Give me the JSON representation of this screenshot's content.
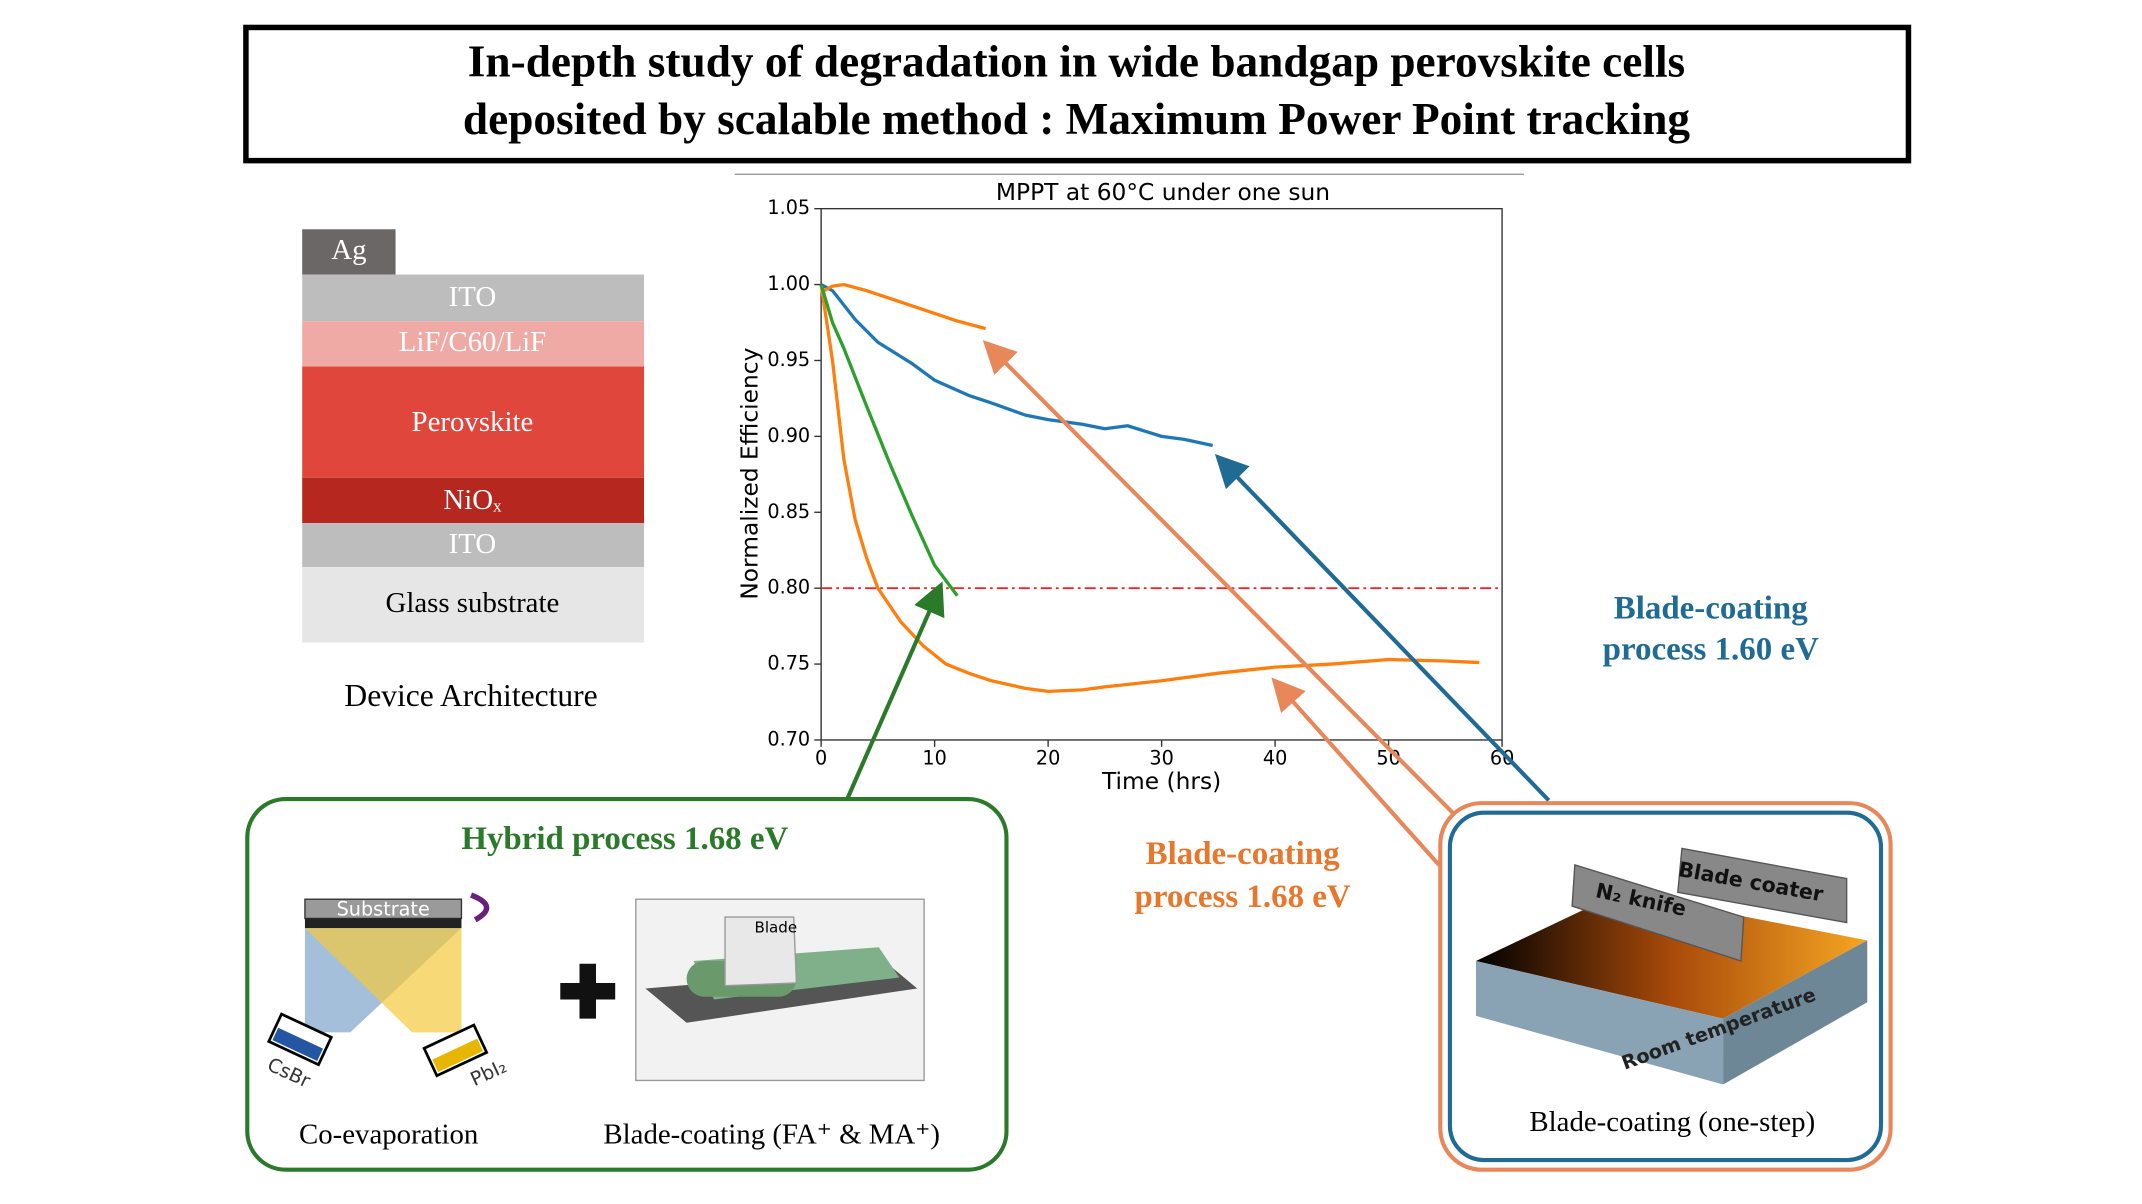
{
  "header": {
    "title_lines": [
      "In-depth study of degradation in wide bandgap perovskite cells",
      "deposited by scalable method : Maximum Power Point tracking"
    ]
  },
  "device": {
    "layers": [
      "Ag",
      "ITO",
      "LiF/C60/LiF",
      "Perovskite",
      "NiOₓ",
      "ITO",
      "Glass substrate"
    ],
    "caption": "Device Architecture"
  },
  "chart_data": {
    "type": "line",
    "title": "MPPT at 60°C under one sun",
    "x_label": "Time (hrs)",
    "y_label": "Normalized Efficiency",
    "xlim": [
      0,
      60
    ],
    "ylim": [
      0.7,
      1.05
    ],
    "xticks": [
      0,
      10,
      20,
      30,
      40,
      50,
      60
    ],
    "yticks": [
      {
        "value": 0.7,
        "label": "0.70"
      },
      0.75,
      {
        "value": 0.8,
        "label": "0.80"
      },
      0.85,
      {
        "value": 0.9,
        "label": "0.90"
      },
      0.95,
      {
        "value": 1.0,
        "label": "1.00"
      },
      1.05
    ],
    "reference_line": 0.8,
    "reference_color": "#e8272a",
    "series": [
      {
        "color": "#1f77b4",
        "x": [
          0,
          1,
          3,
          5,
          8,
          10,
          13,
          15,
          18,
          20,
          23,
          25,
          27,
          30,
          32,
          34.5
        ],
        "values": [
          1.0,
          0.996,
          0.977,
          0.962,
          0.948,
          0.937,
          0.927,
          0.922,
          0.914,
          0.911,
          0.908,
          0.905,
          0.907,
          0.9,
          0.898,
          0.894
        ]
      },
      {
        "color": "#ff7f0e",
        "x": [
          0,
          1,
          2,
          4,
          6,
          8,
          10,
          12,
          14.5
        ],
        "values": [
          0.995,
          0.999,
          1.0,
          0.996,
          0.991,
          0.986,
          0.981,
          0.976,
          0.971
        ]
      },
      {
        "color": "#ff7f0e",
        "x": [
          0,
          0.5,
          1,
          2,
          3,
          4,
          5,
          7,
          9,
          11,
          13,
          15,
          18,
          20,
          23,
          25,
          30,
          35,
          40,
          45,
          50,
          55,
          58
        ],
        "values": [
          1.0,
          0.975,
          0.95,
          0.885,
          0.845,
          0.82,
          0.8,
          0.778,
          0.762,
          0.75,
          0.744,
          0.739,
          0.734,
          0.732,
          0.733,
          0.735,
          0.739,
          0.744,
          0.748,
          0.75,
          0.753,
          0.752,
          0.751
        ]
      },
      {
        "color": "#2ca02c",
        "x": [
          0,
          1,
          2,
          4,
          6,
          8,
          10,
          11,
          12
        ],
        "values": [
          1.0,
          0.975,
          0.958,
          0.92,
          0.883,
          0.848,
          0.815,
          0.805,
          0.795
        ]
      }
    ]
  },
  "annotations": {
    "blade_160": [
      "Blade-coating",
      "process 1.60 eV"
    ],
    "blade_168": [
      "Blade-coating",
      "process 1.68 eV"
    ]
  },
  "hybrid": {
    "title": "Hybrid process 1.68 eV",
    "labels": [
      "Substrate",
      "CsBr",
      "PbI₂",
      "Blade"
    ],
    "captions": [
      "Co-evaporation",
      "Blade-coating (FA⁺ & MA⁺)"
    ]
  },
  "one_step": {
    "labels": [
      "N₂ knife",
      "Blade coater",
      "Room temperature"
    ],
    "caption": "Blade-coating (one-step)"
  }
}
